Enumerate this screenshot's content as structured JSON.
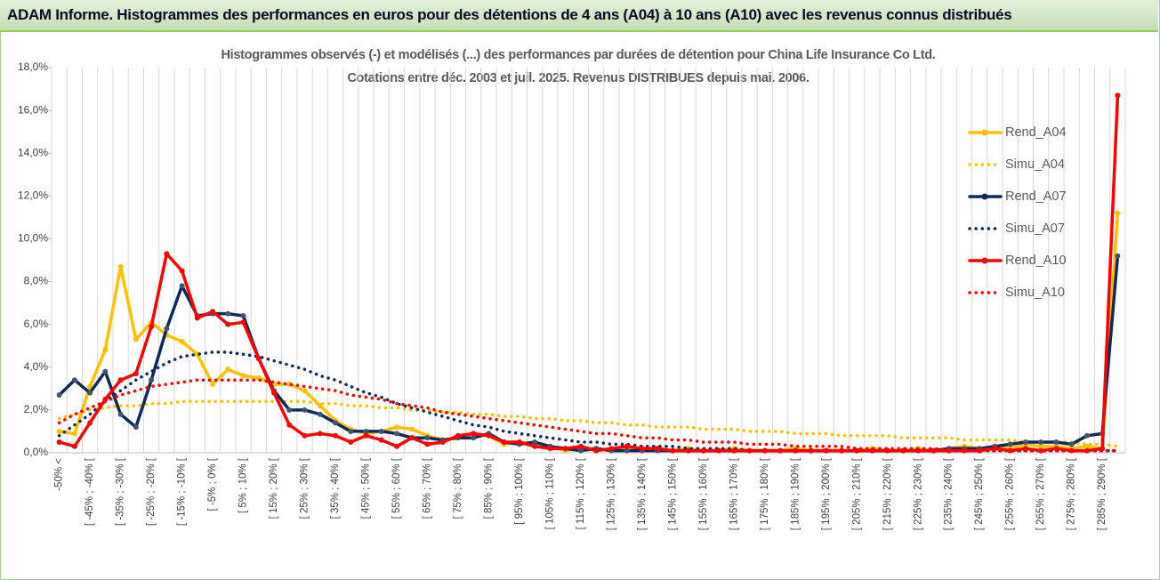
{
  "header": {
    "title": "ADAM Informe. Histogrammes des performances en euros pour des détentions de 4 ans (A04) à 10 ans (A10) avec les revenus connus distribués"
  },
  "chart_data": {
    "type": "line",
    "title": "Histogrammes observés (-) et modélisés (...) des performances par durées de détention pour China Life Insurance Co Ltd.",
    "subtitle": "Cotations entre déc. 2003 et juil. 2025. Revenus DISTRIBUES depuis mai. 2006.",
    "categories": [
      "-50% <",
      null,
      "[ -45% ; -40% [",
      null,
      "[ -35% ; -30% [",
      null,
      "[ -25% ; -20% [",
      null,
      "[ -15% ; -10% [",
      null,
      "[ -5% ; 0% [",
      null,
      "[ 5% ; 10% [",
      null,
      "[ 15% ; 20% [",
      null,
      "[ 25% ; 30% [",
      null,
      "[ 35% ; 40% [",
      null,
      "[ 45% ; 50% [",
      null,
      "[ 55% ; 60% [",
      null,
      "[ 65% ; 70% [",
      null,
      "[ 75% ; 80% [",
      null,
      "[ 85% ; 90% [",
      null,
      "[ 95% ; 100% [",
      null,
      "[ 105% ; 110% [",
      null,
      "[ 115% ; 120% [",
      null,
      "[ 125% ; 130% [",
      null,
      "[ 135% ; 140% [",
      null,
      "[ 145% ; 150% [",
      null,
      "[ 155% ; 160% [",
      null,
      "[ 165% ; 170% [",
      null,
      "[ 175% ; 180% [",
      null,
      "[ 185% ; 190% [",
      null,
      "[ 195% ; 200% [",
      null,
      "[ 205% ; 210% [",
      null,
      "[ 215% ; 220% [",
      null,
      "[ 225% ; 230% [",
      null,
      "[ 235% ; 240% [",
      null,
      "[ 245% ; 250% [",
      null,
      "[ 255% ; 260% [",
      null,
      "[ 265% ; 270% [",
      null,
      "[ 275% ; 280% [",
      null,
      "[ 285% ; 290% [",
      null
    ],
    "ylim": [
      0,
      18
    ],
    "yticks": [
      {
        "value": 0,
        "label": "0,0%"
      },
      {
        "value": 2,
        "label": "2,0%"
      },
      {
        "value": 4,
        "label": "4,0%"
      },
      {
        "value": 6,
        "label": "6,0%"
      },
      {
        "value": 8,
        "label": "8,0%"
      },
      {
        "value": 10,
        "label": "10,0%"
      },
      {
        "value": 12,
        "label": "12,0%"
      },
      {
        "value": 14,
        "label": "14,0%"
      },
      {
        "value": 16,
        "label": "16,0%"
      },
      {
        "value": 18,
        "label": "18,0%"
      }
    ],
    "legend": "right",
    "series": [
      {
        "name": "Rend_A04",
        "color": "#ffc000",
        "style": "solid",
        "values": [
          1.0,
          0.9,
          3.1,
          4.8,
          8.7,
          5.3,
          6.1,
          5.5,
          5.2,
          4.6,
          3.2,
          3.9,
          3.6,
          3.5,
          3.2,
          3.2,
          2.9,
          2.2,
          1.5,
          1.1,
          0.9,
          1.0,
          1.2,
          1.1,
          0.8,
          0.6,
          0.7,
          0.9,
          0.8,
          0.4,
          0.5,
          0.4,
          0.3,
          0.1,
          0.2,
          0.2,
          0.1,
          0.2,
          0.1,
          0.2,
          0.1,
          0.2,
          0.1,
          0.1,
          0.2,
          0.1,
          0.1,
          0.1,
          0.2,
          0.1,
          0.1,
          0.1,
          0.1,
          0.2,
          0.1,
          0.1,
          0.2,
          0.1,
          0.2,
          0.3,
          0.2,
          0.3,
          0.2,
          0.4,
          0.3,
          0.3,
          0.2,
          0.3,
          0.2,
          11.2
        ]
      },
      {
        "name": "Simu_A04",
        "color": "#ffc000",
        "style": "dotted",
        "values": [
          1.6,
          1.8,
          2.0,
          2.1,
          2.2,
          2.2,
          2.3,
          2.3,
          2.4,
          2.4,
          2.4,
          2.4,
          2.4,
          2.4,
          2.4,
          2.4,
          2.4,
          2.3,
          2.3,
          2.2,
          2.2,
          2.1,
          2.1,
          2.0,
          2.0,
          1.9,
          1.9,
          1.8,
          1.8,
          1.7,
          1.7,
          1.6,
          1.6,
          1.5,
          1.5,
          1.4,
          1.4,
          1.3,
          1.3,
          1.2,
          1.2,
          1.2,
          1.1,
          1.1,
          1.1,
          1.0,
          1.0,
          1.0,
          0.9,
          0.9,
          0.9,
          0.8,
          0.8,
          0.8,
          0.8,
          0.7,
          0.7,
          0.7,
          0.7,
          0.6,
          0.6,
          0.6,
          0.6,
          0.5,
          0.5,
          0.5,
          0.5,
          0.4,
          0.4,
          0.3
        ]
      },
      {
        "name": "Rend_A07",
        "color": "#0e2a5a",
        "style": "solid",
        "values": [
          2.7,
          3.4,
          2.8,
          3.8,
          1.8,
          1.2,
          3.4,
          5.8,
          7.8,
          6.4,
          6.5,
          6.5,
          6.4,
          4.4,
          2.9,
          2.0,
          2.0,
          1.8,
          1.4,
          1.0,
          1.0,
          1.0,
          0.9,
          0.7,
          0.7,
          0.6,
          0.7,
          0.7,
          0.9,
          0.5,
          0.4,
          0.5,
          0.3,
          0.2,
          0.1,
          0.2,
          0.1,
          0.1,
          0.1,
          0.1,
          0.1,
          0.1,
          0.1,
          0.1,
          0.1,
          0.1,
          0.1,
          0.1,
          0.1,
          0.1,
          0.1,
          0.1,
          0.1,
          0.1,
          0.1,
          0.1,
          0.1,
          0.1,
          0.2,
          0.2,
          0.2,
          0.3,
          0.4,
          0.5,
          0.5,
          0.5,
          0.4,
          0.8,
          0.9,
          9.2
        ]
      },
      {
        "name": "Simu_A07",
        "color": "#0e2a5a",
        "style": "dotted",
        "values": [
          0.8,
          1.3,
          1.8,
          2.4,
          2.9,
          3.4,
          3.8,
          4.2,
          4.5,
          4.6,
          4.7,
          4.7,
          4.6,
          4.5,
          4.3,
          4.1,
          3.9,
          3.6,
          3.4,
          3.1,
          2.8,
          2.6,
          2.3,
          2.1,
          1.9,
          1.7,
          1.5,
          1.3,
          1.2,
          1.0,
          0.9,
          0.8,
          0.7,
          0.6,
          0.5,
          0.5,
          0.4,
          0.4,
          0.3,
          0.3,
          0.3,
          0.2,
          0.2,
          0.2,
          0.2,
          0.1,
          0.1,
          0.1,
          0.1,
          0.1,
          0.1,
          0.1,
          0.1,
          0.1,
          0.1,
          0.1,
          0.1,
          0.1,
          0.1,
          0.1,
          0.1,
          0.1,
          0.1,
          0.1,
          0.1,
          0.1,
          0.1,
          0.1,
          0.1,
          0.1
        ]
      },
      {
        "name": "Rend_A10",
        "color": "#ff0000",
        "style": "solid",
        "values": [
          0.5,
          0.3,
          1.4,
          2.5,
          3.4,
          3.7,
          5.9,
          9.3,
          8.5,
          6.3,
          6.6,
          6.0,
          6.1,
          4.4,
          2.8,
          1.3,
          0.8,
          0.9,
          0.8,
          0.5,
          0.8,
          0.6,
          0.3,
          0.7,
          0.4,
          0.5,
          0.8,
          0.9,
          0.8,
          0.5,
          0.5,
          0.3,
          0.2,
          0.2,
          0.3,
          0.1,
          0.2,
          0.3,
          0.2,
          0.2,
          0.1,
          0.1,
          0.1,
          0.1,
          0.1,
          0.1,
          0.1,
          0.1,
          0.1,
          0.1,
          0.1,
          0.1,
          0.1,
          0.1,
          0.1,
          0.1,
          0.1,
          0.1,
          0.1,
          0.1,
          0.1,
          0.2,
          0.1,
          0.2,
          0.1,
          0.2,
          0.1,
          0.1,
          0.2,
          16.7
        ]
      },
      {
        "name": "Simu_A10",
        "color": "#ff0000",
        "style": "dotted",
        "values": [
          1.4,
          1.8,
          2.1,
          2.4,
          2.7,
          2.9,
          3.1,
          3.2,
          3.3,
          3.4,
          3.4,
          3.4,
          3.4,
          3.4,
          3.3,
          3.2,
          3.1,
          3.0,
          2.9,
          2.7,
          2.6,
          2.5,
          2.3,
          2.2,
          2.1,
          1.9,
          1.8,
          1.7,
          1.6,
          1.5,
          1.4,
          1.3,
          1.2,
          1.1,
          1.0,
          0.9,
          0.9,
          0.8,
          0.7,
          0.7,
          0.6,
          0.6,
          0.5,
          0.5,
          0.5,
          0.4,
          0.4,
          0.4,
          0.3,
          0.3,
          0.3,
          0.3,
          0.2,
          0.2,
          0.2,
          0.2,
          0.2,
          0.2,
          0.1,
          0.1,
          0.1,
          0.1,
          0.1,
          0.1,
          0.1,
          0.1,
          0.1,
          0.1,
          0.1,
          0.1
        ]
      }
    ]
  }
}
